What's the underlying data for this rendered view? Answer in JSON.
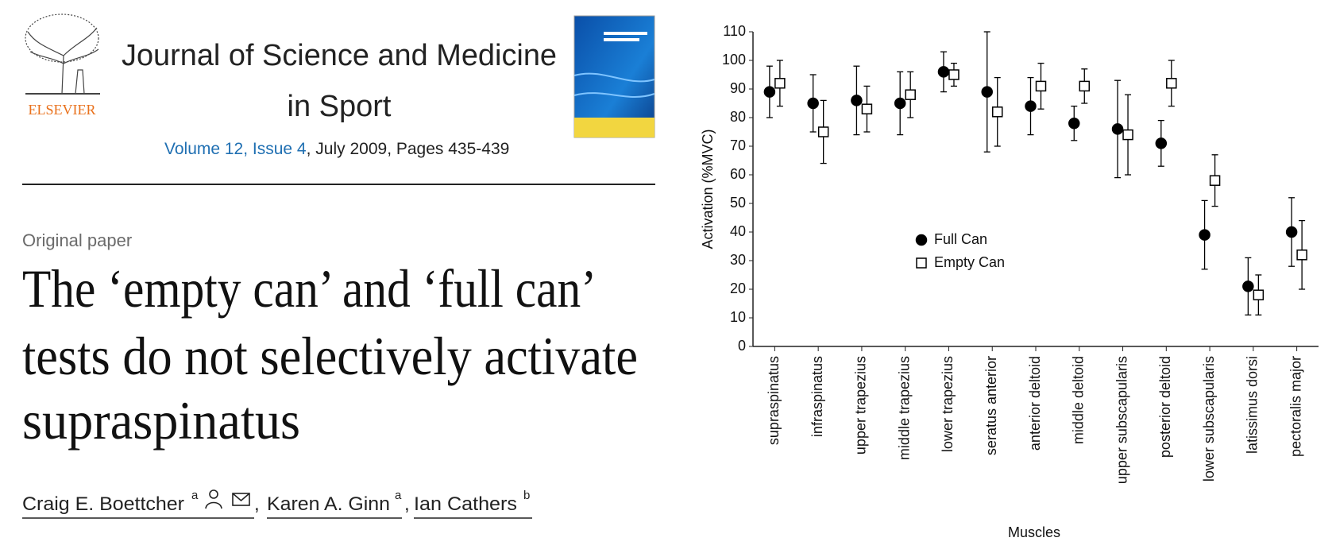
{
  "header": {
    "publisher": "ELSEVIER",
    "journal_title_line1": "Journal of Science and Medicine",
    "journal_title_line2": "in Sport",
    "issue_link": "Volume 12, Issue 4",
    "issue_details": ", July 2009, Pages 435-439"
  },
  "article": {
    "type": "Original paper",
    "title_lines": [
      "The ‘empty can’ and ‘full can’",
      "tests do not selectively activate",
      "supraspinatus"
    ],
    "separator": ",",
    "authors": [
      {
        "name": "Craig E. Boettcher",
        "affiliation": "a"
      },
      {
        "name": "Karen A. Ginn",
        "affiliation": "a"
      },
      {
        "name": "Ian Cathers",
        "affiliation": "b"
      }
    ]
  },
  "chart_data": {
    "type": "errorbar",
    "x_label": "Muscles",
    "y_label": "Activation (%MVC)",
    "categories": [
      "supraspinatus",
      "infraspinatus",
      "upper trapezius",
      "middle trapezius",
      "lower trapezius",
      "seratus anterior",
      "anterior deltoid",
      "middle deltoid",
      "upper subscapularis",
      "posterior deltoid",
      "lower subscapularis",
      "latissimus dorsi",
      "pectoralis major"
    ],
    "series": [
      {
        "name": "Full Can",
        "color": "#000000",
        "marker": "circle",
        "filled": true,
        "values": [
          89,
          85,
          86,
          85,
          96,
          89,
          84,
          78,
          76,
          71,
          39,
          21,
          40
        ],
        "errors": [
          9,
          10,
          12,
          11,
          7,
          21,
          10,
          6,
          17,
          8,
          12,
          10,
          12
        ]
      },
      {
        "name": "Empty Can",
        "color": "#000000",
        "marker": "square",
        "filled": false,
        "values": [
          92,
          75,
          83,
          88,
          95,
          82,
          91,
          91,
          74,
          92,
          58,
          18,
          32
        ],
        "errors": [
          8,
          11,
          8,
          8,
          4,
          12,
          8,
          6,
          14,
          8,
          9,
          7,
          12
        ]
      }
    ],
    "ylim": [
      0,
      110
    ],
    "yticks": [
      0,
      10,
      20,
      30,
      40,
      50,
      60,
      70,
      80,
      90,
      100,
      110
    ],
    "grid": false
  }
}
